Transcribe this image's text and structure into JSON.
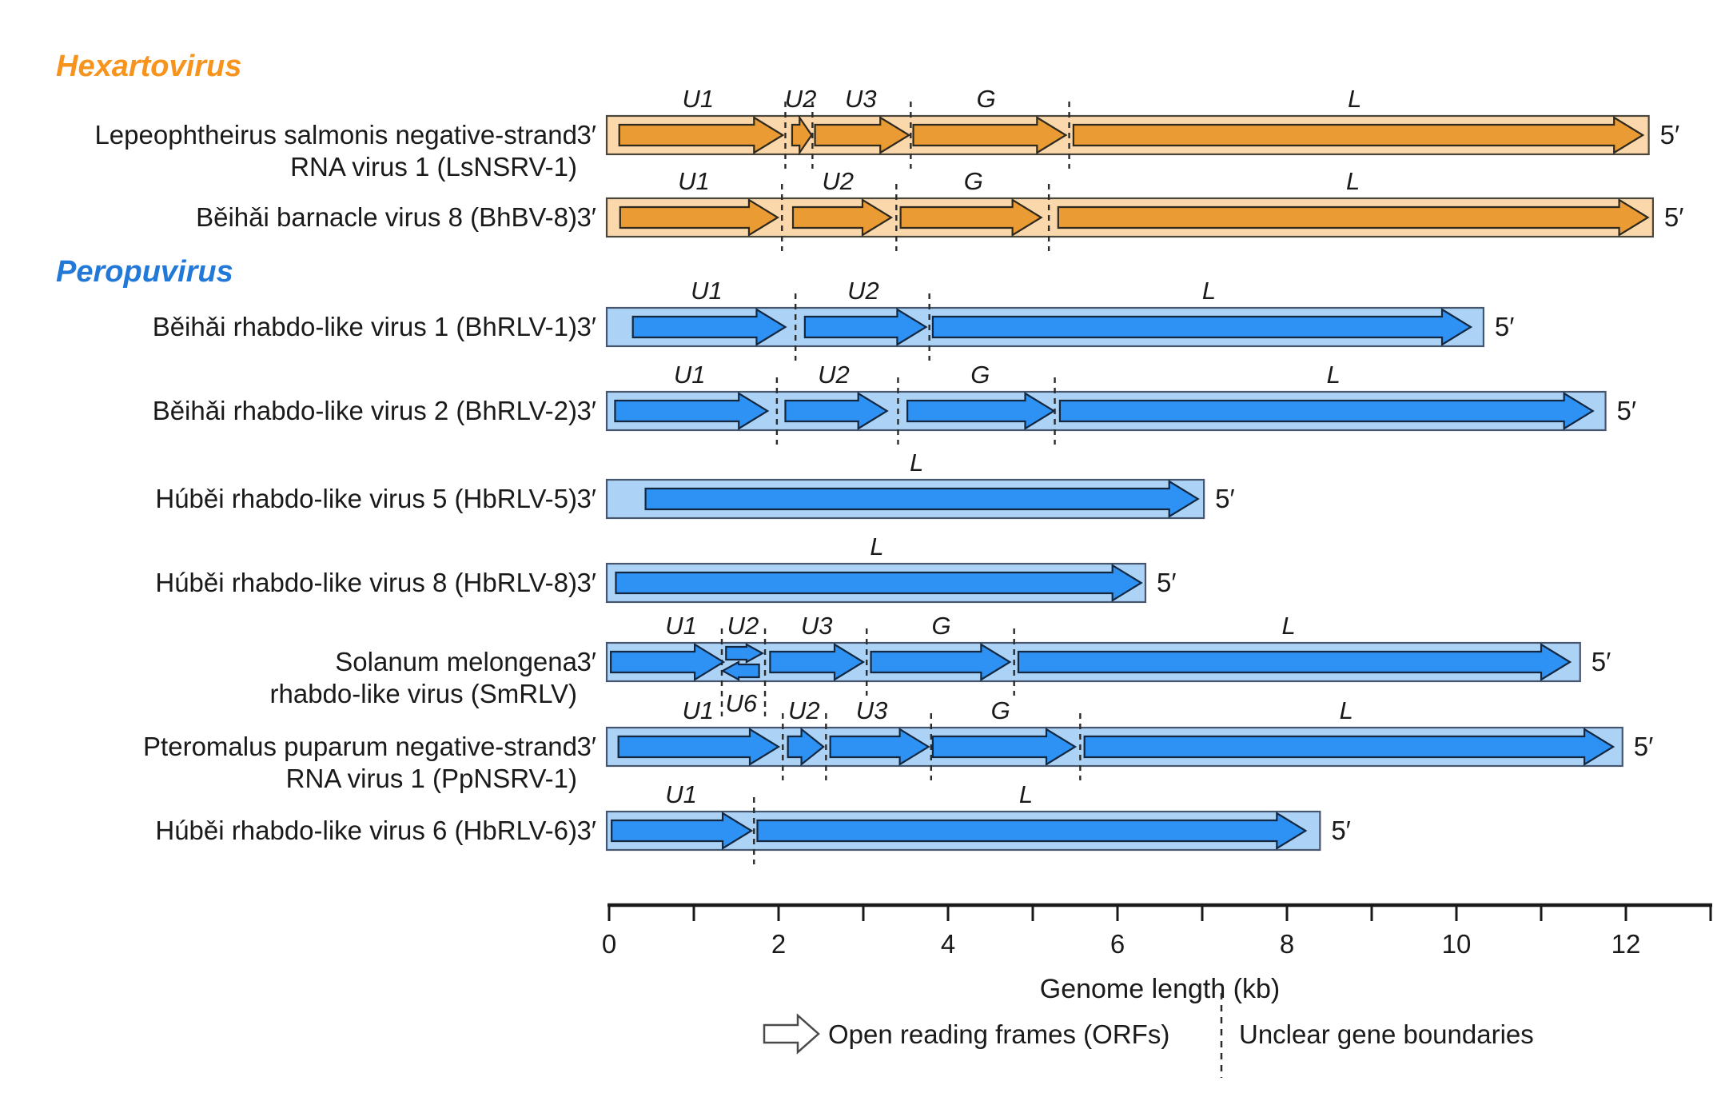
{
  "figure": {
    "prime3": "3′",
    "prime5": "5′",
    "axis": {
      "label": "Genome length (kb)",
      "major_ticks": [
        0,
        2,
        4,
        6,
        8,
        10,
        12
      ],
      "minor_ticks": [
        1,
        3,
        5,
        7,
        9,
        11,
        13
      ],
      "range_kb": [
        0,
        13
      ]
    },
    "legend": {
      "orf": "Open reading frames (ORFs)",
      "boundary": "Unclear gene boundaries"
    },
    "colors": {
      "hexartovirus": {
        "bar": "#FBD7AC",
        "arrow": "#EA9B33",
        "outline": "#2E2A20",
        "bar_outline": "#4A463C",
        "title": "#F7941D"
      },
      "peropuvirus": {
        "bar": "#ACD3F6",
        "arrow": "#2E92F5",
        "outline": "#132840",
        "bar_outline": "#46566E",
        "title": "#2279D8"
      }
    }
  },
  "chart_data": {
    "type": "genome_map",
    "unit": "kb",
    "genera": [
      {
        "name": "Hexartovirus",
        "scheme": "hexartovirus",
        "viruses": [
          {
            "name_lines": [
              "Lepeophtheirus salmonis negative-strand",
              "RNA virus 1 (LsNSRV-1)"
            ],
            "abbr": "LsNSRV-1",
            "genome_length_kb": 12.27,
            "orfs": [
              {
                "name": "U1",
                "start_kb": 0.12,
                "end_kb": 2.05,
                "label_kb": 1.05
              },
              {
                "name": "U2",
                "start_kb": 2.16,
                "end_kb": 2.39,
                "label_kb": 2.26
              },
              {
                "name": "U3",
                "start_kb": 2.43,
                "end_kb": 3.54,
                "label_kb": 2.97
              },
              {
                "name": "G",
                "start_kb": 3.59,
                "end_kb": 5.39,
                "label_kb": 4.45
              },
              {
                "name": "L",
                "start_kb": 5.48,
                "end_kb": 12.2,
                "label_kb": 8.8
              }
            ],
            "boundaries_kb": [
              2.08,
              2.4,
              3.56,
              5.43
            ]
          },
          {
            "name_lines": [
              "Běihǎi barnacle virus 8 (BhBV-8)"
            ],
            "abbr": "BhBV-8",
            "genome_length_kb": 12.32,
            "orfs": [
              {
                "name": "U1",
                "start_kb": 0.13,
                "end_kb": 1.99,
                "label_kb": 1.0
              },
              {
                "name": "U2",
                "start_kb": 2.17,
                "end_kb": 3.33,
                "label_kb": 2.7
              },
              {
                "name": "G",
                "start_kb": 3.44,
                "end_kb": 5.1,
                "label_kb": 4.3
              },
              {
                "name": "L",
                "start_kb": 5.3,
                "end_kb": 12.26,
                "label_kb": 8.78
              }
            ],
            "boundaries_kb": [
              2.04,
              3.39,
              5.19
            ]
          }
        ]
      },
      {
        "name": "Peropuvirus",
        "scheme": "peropuvirus",
        "viruses": [
          {
            "name_lines": [
              "Běihǎi rhabdo-like virus 1 (BhRLV-1)"
            ],
            "abbr": "BhRLV-1",
            "genome_length_kb": 10.32,
            "orfs": [
              {
                "name": "U1",
                "start_kb": 0.28,
                "end_kb": 2.08,
                "label_kb": 1.15
              },
              {
                "name": "U2",
                "start_kb": 2.31,
                "end_kb": 3.74,
                "label_kb": 3.0
              },
              {
                "name": "L",
                "start_kb": 3.82,
                "end_kb": 10.17,
                "label_kb": 7.08
              }
            ],
            "boundaries_kb": [
              2.2,
              3.78
            ]
          },
          {
            "name_lines": [
              "Běihǎi rhabdo-like virus 2 (BhRLV-2)"
            ],
            "abbr": "BhRLV-2",
            "genome_length_kb": 11.76,
            "orfs": [
              {
                "name": "U1",
                "start_kb": 0.07,
                "end_kb": 1.87,
                "label_kb": 0.95
              },
              {
                "name": "U2",
                "start_kb": 2.08,
                "end_kb": 3.28,
                "label_kb": 2.65
              },
              {
                "name": "G",
                "start_kb": 3.52,
                "end_kb": 5.25,
                "label_kb": 4.38
              },
              {
                "name": "L",
                "start_kb": 5.32,
                "end_kb": 11.61,
                "label_kb": 8.55
              }
            ],
            "boundaries_kb": [
              1.98,
              3.41,
              5.26
            ]
          },
          {
            "name_lines": [
              "Húběi rhabdo-like virus 5 (HbRLV-5)"
            ],
            "abbr": "HbRLV-5",
            "genome_length_kb": 7.02,
            "orfs": [
              {
                "name": "L",
                "start_kb": 0.43,
                "end_kb": 6.95,
                "label_kb": 3.63
              }
            ],
            "boundaries_kb": []
          },
          {
            "name_lines": [
              "Húběi rhabdo-like virus 8 (HbRLV-8)"
            ],
            "abbr": "HbRLV-8",
            "genome_length_kb": 6.33,
            "orfs": [
              {
                "name": "L",
                "start_kb": 0.08,
                "end_kb": 6.28,
                "label_kb": 3.16
              }
            ],
            "boundaries_kb": []
          },
          {
            "name_lines": [
              "Solanum melongena",
              "rhabdo-like virus (SmRLV)"
            ],
            "abbr": "SmRLV",
            "genome_length_kb": 11.46,
            "orfs": [
              {
                "name": "U1",
                "start_kb": 0.02,
                "end_kb": 1.35,
                "label_kb": 0.85
              },
              {
                "name": "U2",
                "start_kb": 1.38,
                "end_kb": 1.81,
                "label_kb": 1.58,
                "lane": "top"
              },
              {
                "name": "U6",
                "start_kb": 1.34,
                "end_kb": 1.77,
                "label_kb": 1.56,
                "lane": "bottom",
                "direction": "left",
                "label_side": "below"
              },
              {
                "name": "U3",
                "start_kb": 1.9,
                "end_kb": 3.0,
                "label_kb": 2.45
              },
              {
                "name": "G",
                "start_kb": 3.09,
                "end_kb": 4.73,
                "label_kb": 3.92
              },
              {
                "name": "L",
                "start_kb": 4.83,
                "end_kb": 11.34,
                "label_kb": 8.02
              }
            ],
            "boundaries_kb": [
              1.33,
              1.84,
              3.04,
              4.78
            ]
          },
          {
            "name_lines": [
              "Pteromalus puparum negative-strand",
              "RNA virus 1 (PpNSRV-1)"
            ],
            "abbr": "PpNSRV-1",
            "genome_length_kb": 11.96,
            "orfs": [
              {
                "name": "U1",
                "start_kb": 0.11,
                "end_kb": 2.0,
                "label_kb": 1.05
              },
              {
                "name": "U2",
                "start_kb": 2.11,
                "end_kb": 2.53,
                "label_kb": 2.3
              },
              {
                "name": "U3",
                "start_kb": 2.61,
                "end_kb": 3.77,
                "label_kb": 3.1
              },
              {
                "name": "G",
                "start_kb": 3.82,
                "end_kb": 5.5,
                "label_kb": 4.62
              },
              {
                "name": "L",
                "start_kb": 5.61,
                "end_kb": 11.85,
                "label_kb": 8.7
              }
            ],
            "boundaries_kb": [
              2.05,
              2.56,
              3.8,
              5.56
            ]
          },
          {
            "name_lines": [
              "Húběi rhabdo-like virus 6 (HbRLV-6)"
            ],
            "abbr": "HbRLV-6",
            "genome_length_kb": 8.39,
            "orfs": [
              {
                "name": "U1",
                "start_kb": 0.03,
                "end_kb": 1.68,
                "label_kb": 0.85
              },
              {
                "name": "L",
                "start_kb": 1.75,
                "end_kb": 8.22,
                "label_kb": 4.92
              }
            ],
            "boundaries_kb": [
              1.71
            ]
          }
        ]
      }
    ]
  }
}
